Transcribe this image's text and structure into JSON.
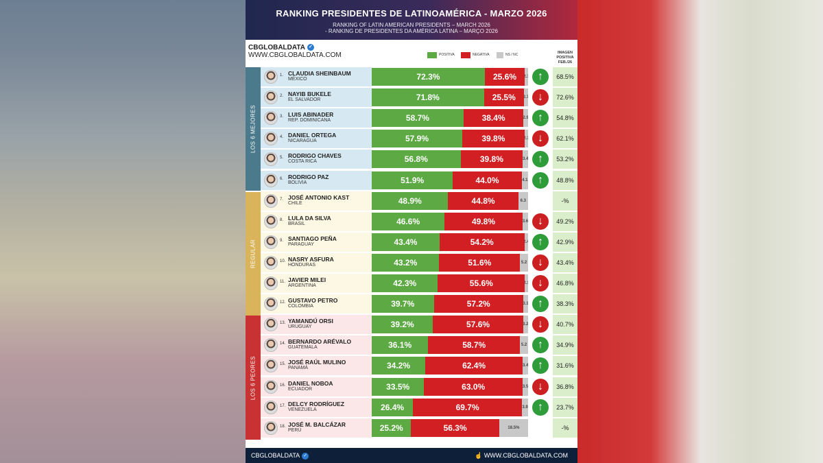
{
  "header": {
    "title": "RANKING PRESIDENTES DE LATINOAMÉRICA - MARZO 2026",
    "subtitle_en": "RANKING OF LATIN AMERICAN PRESIDENTS – MARCH 2026",
    "subtitle_pt": "- RANKING DE PRESIDENTES DA AMÉRICA LATINA – MARÇO 2026"
  },
  "brand": {
    "name": "CBGLOBALDATA",
    "url": "WWW.CBGLOBALDATA.COM",
    "verify_icon": "verified-icon"
  },
  "legend": {
    "positive": "POSITIVA",
    "negative": "NEGATIVA",
    "ns": "NS / NC"
  },
  "prev_header": {
    "line1": "IMAGEN",
    "line2": "POSITIVA",
    "line3": "FEB./26"
  },
  "groups": [
    {
      "label": "LOS 6 MEJORES",
      "color": "#4a7a8c"
    },
    {
      "label": "REGULAR",
      "color": "#d9b45a"
    },
    {
      "label": "LOS 6 PEORES",
      "color": "#c83232"
    }
  ],
  "colors": {
    "positive": "#5daa44",
    "negative": "#d21f23",
    "ns": "#c8c8c8",
    "up": "#2f9c3a",
    "down": "#cc1f22"
  },
  "chart_data": {
    "type": "bar",
    "stacked": true,
    "orientation": "horizontal",
    "title": "RANKING PRESIDENTES DE LATINOAMÉRICA - MARZO 2026",
    "categories": [
      "CLAUDIA SHEINBAUM",
      "NAYIB BUKELE",
      "LUIS ABINADER",
      "DANIEL ORTEGA",
      "RODRIGO CHAVES",
      "RODRIGO PAZ",
      "JOSÉ ANTONIO KAST",
      "LULA DA SILVA",
      "SANTIAGO PEÑA",
      "NASRY ASFURA",
      "JAVIER MILEI",
      "GUSTAVO PETRO",
      "YAMANDÚ ORSI",
      "BERNARDO ARÉVALO",
      "JOSÉ RAÚL MULINO",
      "DANIEL NOBOA",
      "DELCY RODRÍGUEZ",
      "JOSÉ M. BALCÁZAR"
    ],
    "series": [
      {
        "name": "POSITIVA",
        "values": [
          72.3,
          71.8,
          58.7,
          57.9,
          56.8,
          51.9,
          48.9,
          46.6,
          43.4,
          43.2,
          42.3,
          39.7,
          39.2,
          36.1,
          34.2,
          33.5,
          26.4,
          25.2
        ]
      },
      {
        "name": "NEGATIVA",
        "values": [
          25.6,
          25.5,
          38.4,
          39.8,
          39.8,
          44.0,
          44.8,
          49.8,
          54.2,
          51.6,
          55.6,
          57.2,
          57.6,
          58.7,
          62.4,
          63.0,
          69.7,
          56.3
        ]
      },
      {
        "name": "NS / NC",
        "values": [
          2.1,
          2.7,
          2.9,
          2.3,
          3.4,
          4.1,
          6.3,
          3.6,
          2.4,
          5.2,
          2.1,
          3.1,
          3.2,
          5.2,
          3.4,
          3.5,
          3.9,
          18.5
        ]
      }
    ],
    "xlim": [
      0,
      100
    ]
  },
  "rows": [
    {
      "rank": "1.",
      "name": "CLAUDIA SHEINBAUM",
      "country": "MÉXICO",
      "pos": "72.3%",
      "neg": "25.6%",
      "ns": "2.1",
      "trend": "up",
      "prev": "68.5%"
    },
    {
      "rank": "2.",
      "name": "NAYIB BUKELE",
      "country": "EL SALVADOR",
      "pos": "71.8%",
      "neg": "25.5%",
      "ns": "2.7",
      "trend": "down",
      "prev": "72.6%"
    },
    {
      "rank": "3.",
      "name": "LUIS ABINADER",
      "country": "REP. DOMINICANA",
      "pos": "58.7%",
      "neg": "38.4%",
      "ns": "2.9",
      "trend": "up",
      "prev": "54.8%"
    },
    {
      "rank": "4.",
      "name": "DANIEL ORTEGA",
      "country": "NICARAGUA",
      "pos": "57.9%",
      "neg": "39.8%",
      "ns": "2.3",
      "trend": "down",
      "prev": "62.1%"
    },
    {
      "rank": "5.",
      "name": "RODRIGO CHAVES",
      "country": "COSTA RICA",
      "pos": "56.8%",
      "neg": "39.8%",
      "ns": "3.4",
      "trend": "up",
      "prev": "53.2%"
    },
    {
      "rank": "6.",
      "name": "RODRIGO PAZ",
      "country": "BOLIVIA",
      "pos": "51.9%",
      "neg": "44.0%",
      "ns": "4.1",
      "trend": "up",
      "prev": "48.8%"
    },
    {
      "rank": "7.",
      "name": "JOSÉ ANTONIO KAST",
      "country": "CHILE",
      "pos": "48.9%",
      "neg": "44.8%",
      "ns": "6.3",
      "trend": "none",
      "prev": "-%"
    },
    {
      "rank": "8.",
      "name": "LULA DA SILVA",
      "country": "BRASIL",
      "pos": "46.6%",
      "neg": "49.8%",
      "ns": "3.6",
      "trend": "down",
      "prev": "49.2%"
    },
    {
      "rank": "9.",
      "name": "SANTIAGO PEÑA",
      "country": "PARAGUAY",
      "pos": "43.4%",
      "neg": "54.2%",
      "ns": "2.4",
      "trend": "up",
      "prev": "42.9%"
    },
    {
      "rank": "10.",
      "name": "NASRY ASFURA",
      "country": "HONDURAS",
      "pos": "43.2%",
      "neg": "51.6%",
      "ns": "5.2",
      "trend": "down",
      "prev": "43.4%"
    },
    {
      "rank": "11.",
      "name": "JAVIER MILEI",
      "country": "ARGENTINA",
      "pos": "42.3%",
      "neg": "55.6%",
      "ns": "2.1",
      "trend": "down",
      "prev": "46.8%"
    },
    {
      "rank": "12.",
      "name": "GUSTAVO PETRO",
      "country": "COLOMBIA",
      "pos": "39.7%",
      "neg": "57.2%",
      "ns": "3.1",
      "trend": "up",
      "prev": "38.3%"
    },
    {
      "rank": "13.",
      "name": "YAMANDÚ ORSI",
      "country": "URUGUAY",
      "pos": "39.2%",
      "neg": "57.6%",
      "ns": "3.2",
      "trend": "down",
      "prev": "40.7%"
    },
    {
      "rank": "14.",
      "name": "BERNARDO ARÉVALO",
      "country": "GUATEMALA",
      "pos": "36.1%",
      "neg": "58.7%",
      "ns": "5.2",
      "trend": "up",
      "prev": "34.9%"
    },
    {
      "rank": "15.",
      "name": "JOSÉ RAÚL MULINO",
      "country": "PANAMÁ",
      "pos": "34.2%",
      "neg": "62.4%",
      "ns": "3.4",
      "trend": "up",
      "prev": "31.6%"
    },
    {
      "rank": "16.",
      "name": "DANIEL NOBOA",
      "country": "ECUADOR",
      "pos": "33.5%",
      "neg": "63.0%",
      "ns": "3.5",
      "trend": "down",
      "prev": "36.8%"
    },
    {
      "rank": "17.",
      "name": "DELCY RODRÍGUEZ",
      "country": "VENEZUELA",
      "pos": "26.4%",
      "neg": "69.7%",
      "ns": "3.9",
      "trend": "up",
      "prev": "23.7%"
    },
    {
      "rank": "18.",
      "name": "JOSÉ M. BALCÁZAR",
      "country": "PERÚ",
      "pos": "25.2%",
      "neg": "56.3%",
      "ns": "18.5%",
      "trend": "none",
      "prev": "-%"
    }
  ],
  "footer": {
    "left": "CBGLOBALDATA",
    "right": "WWW.CBGLOBALDATA.COM"
  }
}
